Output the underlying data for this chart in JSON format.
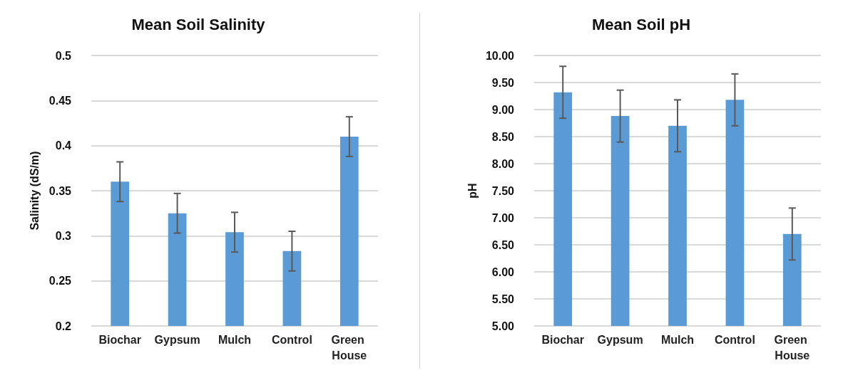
{
  "chart_data": [
    {
      "type": "bar",
      "title": "Mean Soil Salinity",
      "ylabel": "Salinity (dS/m)",
      "categories": [
        "Biochar",
        "Gypsum",
        "Mulch",
        "Control",
        "Green House"
      ],
      "values": [
        0.36,
        0.325,
        0.304,
        0.283,
        0.41
      ],
      "errors": [
        0.022,
        0.022,
        0.022,
        0.022,
        0.022
      ],
      "color": "#5b9bd5",
      "ylim": [
        0.2,
        0.5
      ],
      "yticks": [
        0.2,
        0.25,
        0.3,
        0.35,
        0.4,
        0.45,
        0.5
      ],
      "grid": "y"
    },
    {
      "type": "bar",
      "title": "Mean Soil pH",
      "ylabel": "pH",
      "categories": [
        "Biochar",
        "Gypsum",
        "Mulch",
        "Control",
        "Green House"
      ],
      "values": [
        9.32,
        8.88,
        8.7,
        9.18,
        6.7
      ],
      "errors": [
        0.48,
        0.48,
        0.48,
        0.48,
        0.48
      ],
      "color": "#5b9bd5",
      "ylim": [
        5,
        10
      ],
      "yticks": [
        {
          "value": 5,
          "label": "5.00"
        },
        {
          "value": 5.5,
          "label": "5.50"
        },
        {
          "value": 6,
          "label": "6.00"
        },
        {
          "value": 6.5,
          "label": "6.50"
        },
        {
          "value": 7,
          "label": "7.00"
        },
        {
          "value": 7.5,
          "label": "7.50"
        },
        {
          "value": 8,
          "label": "8.00"
        },
        {
          "value": 8.5,
          "label": "8.50"
        },
        {
          "value": 9,
          "label": "9.00"
        },
        {
          "value": 9.5,
          "label": "9.50"
        },
        {
          "value": 10,
          "label": "10.00"
        }
      ],
      "grid": "y"
    }
  ]
}
